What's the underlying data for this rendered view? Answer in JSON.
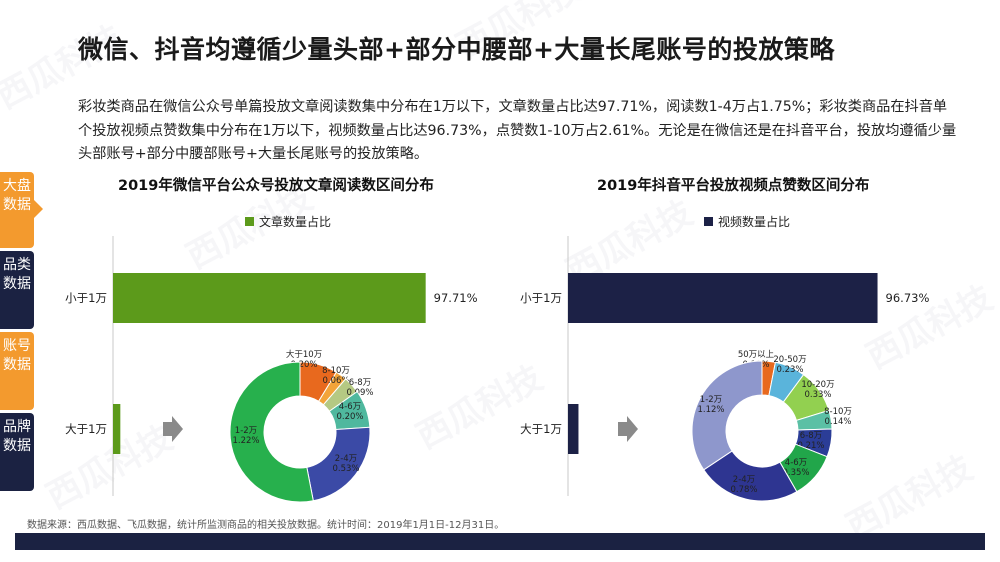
{
  "page": {
    "title": "微信、抖音均遵循少量头部+部分中腰部+大量长尾账号的投放策略",
    "summary": "彩妆类商品在微信公众号单篇投放文章阅读数集中分布在1万以下，文章数量占比达97.71%，阅读数1-4万占1.75%；彩妆类商品在抖音单个投放视频点赞数集中分布在1万以下，视频数量占比达96.73%，点赞数1-10万占2.61%。无论是在微信还是在抖音平台，投放均遵循少量头部账号+部分中腰部账号+大量长尾账号的投放策略。",
    "footnote": "数据来源：西瓜数据、飞瓜数据，统计所监测商品的相关投放数据。统计时间：2019年1月1日-12月31日。",
    "watermark": "西瓜科技"
  },
  "side_tabs": [
    {
      "label": "大盘数据",
      "color": "#f39a2e",
      "active": true
    },
    {
      "label": "品类数据",
      "color": "#1b2242",
      "active": false
    },
    {
      "label": "账号数据",
      "color": "#f39a2e",
      "active": false
    },
    {
      "label": "品牌数据",
      "color": "#1b2242",
      "active": false
    }
  ],
  "colors": {
    "wechat_bar": "#5c9a1b",
    "douyin_bar": "#1c2146",
    "arrow": "#8a8a8a",
    "accent": "#f39a2e",
    "navy": "#1b2242"
  },
  "chart_data": [
    {
      "type": "bar",
      "orientation": "horizontal",
      "title": "2019年微信平台公众号投放文章阅读数区间分布",
      "series": [
        {
          "name": "文章数量占比",
          "color": "#5c9a1b",
          "values": [
            97.71,
            2.29
          ]
        }
      ],
      "categories": [
        "小于1万",
        "大于1万"
      ],
      "data_labels": [
        "97.71%",
        ""
      ],
      "grid": false,
      "legend": "top",
      "breakdown": {
        "type": "pie",
        "style": "donut",
        "of_category": "大于1万",
        "slices": [
          {
            "label": "大于10万",
            "value": 0.2,
            "value_label": "0.20%",
            "color": "#e8691e"
          },
          {
            "label": "8-10万",
            "value": 0.06,
            "value_label": "0.06%",
            "color": "#f3a43a"
          },
          {
            "label": "6-8万",
            "value": 0.09,
            "value_label": "0.09%",
            "color": "#b5c983"
          },
          {
            "label": "4-6万",
            "value": 0.2,
            "value_label": "0.20%",
            "color": "#4fb89e"
          },
          {
            "label": "2-4万",
            "value": 0.53,
            "value_label": "0.53%",
            "color": "#3b4aa6"
          },
          {
            "label": "1-2万",
            "value": 1.22,
            "value_label": "1.22%",
            "color": "#27b04d"
          }
        ]
      }
    },
    {
      "type": "bar",
      "orientation": "horizontal",
      "title": "2019年抖音平台投放视频点赞数区间分布",
      "series": [
        {
          "name": "视频数量占比",
          "color": "#1c2146",
          "values": [
            96.73,
            3.27
          ]
        }
      ],
      "categories": [
        "小于1万",
        "大于1万"
      ],
      "data_labels": [
        "96.73%",
        ""
      ],
      "grid": false,
      "legend": "top",
      "breakdown": {
        "type": "pie",
        "style": "donut",
        "of_category": "大于1万",
        "slices": [
          {
            "label": "50万以上",
            "value": 0.1,
            "value_label": "0.10%",
            "color": "#e8691e"
          },
          {
            "label": "20-50万",
            "value": 0.23,
            "value_label": "0.23%",
            "color": "#5ab4db"
          },
          {
            "label": "10-20万",
            "value": 0.33,
            "value_label": "0.33%",
            "color": "#92d050"
          },
          {
            "label": "8-10万",
            "value": 0.14,
            "value_label": "0.14%",
            "color": "#5bc0a5"
          },
          {
            "label": "6-8万",
            "value": 0.21,
            "value_label": "0.21%",
            "color": "#2b3d97"
          },
          {
            "label": "4-6万",
            "value": 0.35,
            "value_label": "0.35%",
            "color": "#21a64a"
          },
          {
            "label": "2-4万",
            "value": 0.78,
            "value_label": "0.78%",
            "color": "#2e3591"
          },
          {
            "label": "1-2万",
            "value": 1.12,
            "value_label": "1.12%",
            "color": "#8e97cc"
          }
        ]
      }
    }
  ]
}
